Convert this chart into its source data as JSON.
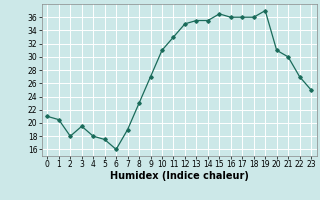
{
  "x": [
    0,
    1,
    2,
    3,
    4,
    5,
    6,
    7,
    8,
    9,
    10,
    11,
    12,
    13,
    14,
    15,
    16,
    17,
    18,
    19,
    20,
    21,
    22,
    23
  ],
  "y": [
    21,
    20.5,
    18,
    19.5,
    18,
    17.5,
    16,
    19,
    23,
    27,
    31,
    33,
    35,
    35.5,
    35.5,
    36.5,
    36,
    36,
    36,
    37,
    31,
    30,
    27,
    25
  ],
  "xlabel": "Humidex (Indice chaleur)",
  "line_color": "#1a6b5a",
  "marker": "D",
  "marker_size": 1.8,
  "linewidth": 0.9,
  "bg_color": "#cce8e8",
  "grid_color": "#ffffff",
  "ylim": [
    15,
    38
  ],
  "xlim": [
    -0.5,
    23.5
  ],
  "yticks": [
    16,
    18,
    20,
    22,
    24,
    26,
    28,
    30,
    32,
    34,
    36
  ],
  "xticks": [
    0,
    1,
    2,
    3,
    4,
    5,
    6,
    7,
    8,
    9,
    10,
    11,
    12,
    13,
    14,
    15,
    16,
    17,
    18,
    19,
    20,
    21,
    22,
    23
  ],
  "xlabel_fontsize": 7,
  "tick_fontsize": 5.5
}
